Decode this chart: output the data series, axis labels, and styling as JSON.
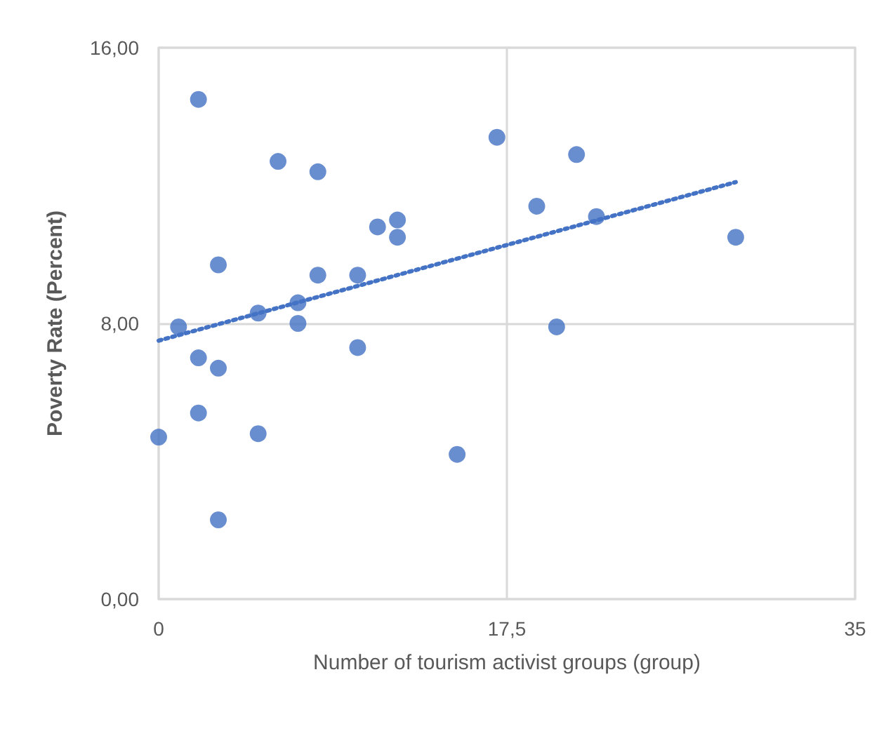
{
  "chart_data": {
    "type": "scatter",
    "xlabel": "Number of tourism activist groups (group)",
    "ylabel": "Poverty Rate (Percent)",
    "xlim": [
      0,
      35
    ],
    "xticks": [
      0,
      {
        "value": 17.5,
        "label": "17,5"
      },
      35
    ],
    "ylim": [
      0,
      16
    ],
    "yticks": [
      {
        "value": 0,
        "label": "0,00"
      },
      {
        "value": 8,
        "label": "8,00"
      },
      {
        "value": 16,
        "label": "16,00"
      }
    ],
    "grid": true,
    "marker": "circle",
    "series": [
      {
        "color": "#4472c4",
        "x": [
          2,
          6,
          8,
          11,
          12,
          12,
          3,
          8,
          10,
          7,
          5,
          1,
          7,
          10,
          2,
          3,
          2,
          0,
          5,
          15,
          3,
          17,
          21,
          19,
          22,
          29,
          20
        ],
        "values": [
          14.5,
          12.7,
          12.4,
          10.8,
          11.0,
          10.5,
          9.7,
          9.4,
          9.4,
          8.6,
          8.3,
          7.9,
          8.0,
          7.3,
          7.0,
          6.7,
          5.4,
          4.7,
          4.8,
          4.2,
          2.3,
          13.4,
          12.9,
          11.4,
          11.1,
          10.5,
          7.9
        ]
      },
      {
        "type": "line",
        "color": "#4472c4",
        "line_style": "dotted",
        "marker": "none",
        "x": [
          0,
          29
        ],
        "values": [
          7.5,
          12.1
        ]
      }
    ]
  }
}
